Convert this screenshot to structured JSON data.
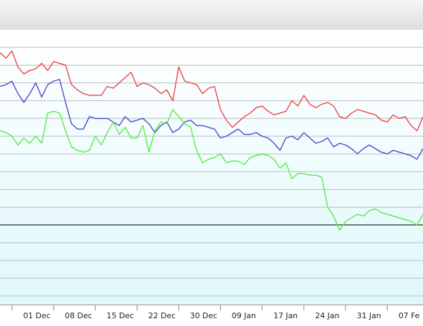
{
  "chart_data": {
    "type": "line",
    "title": "",
    "xlabel": "",
    "ylabel": "",
    "grid": true,
    "x_ticks": [
      "01 Dec",
      "08 Dec",
      "15 Dec",
      "22 Dec",
      "30 Dec",
      "09 Jan",
      "17 Jan",
      "24 Jan",
      "31 Jan",
      "07 Fe"
    ],
    "x_range": [
      -3,
      68
    ],
    "y_range": [
      -4.5,
      11
    ],
    "reference_line": 0,
    "colors": {
      "red": "#ee4444",
      "blue": "#5544cc",
      "green": "#55ee44",
      "grid": "#bbbbbb",
      "zero": "#333333"
    },
    "series": [
      {
        "color": "#ee4444",
        "x": [
          -3,
          -2,
          -1,
          0,
          1,
          2,
          3,
          4,
          5,
          6,
          7,
          8,
          9,
          10,
          11,
          12,
          13,
          14,
          15,
          16,
          17,
          18,
          19,
          20,
          21,
          22,
          23,
          24,
          25,
          26,
          27,
          28,
          29,
          30,
          31,
          32,
          33,
          34,
          35,
          36,
          37,
          38,
          39,
          40,
          41,
          42,
          43,
          44,
          45,
          46,
          47,
          48,
          49,
          50,
          51,
          52,
          53,
          54,
          55,
          56,
          57,
          58,
          59,
          60,
          61,
          62,
          63,
          64,
          65,
          66,
          67,
          68
        ],
        "values": [
          9.7,
          9.4,
          9.8,
          8.9,
          8.5,
          8.7,
          8.8,
          9.1,
          8.7,
          9.2,
          9.1,
          9.0,
          7.9,
          7.6,
          7.4,
          7.3,
          7.3,
          7.3,
          7.8,
          7.7,
          8.0,
          8.3,
          8.6,
          7.8,
          8.0,
          7.9,
          7.7,
          7.4,
          7.6,
          7.0,
          8.9,
          8.1,
          8.0,
          7.9,
          7.4,
          7.7,
          7.8,
          6.5,
          5.9,
          5.5,
          5.8,
          6.1,
          6.3,
          6.6,
          6.7,
          6.4,
          6.2,
          6.3,
          6.4,
          7.0,
          6.7,
          7.3,
          6.8,
          6.6,
          6.8,
          6.9,
          6.7,
          6.1,
          6.0,
          6.3,
          6.5,
          6.4,
          6.3,
          6.2,
          5.9,
          5.8,
          6.2,
          6.0,
          6.1,
          5.6,
          5.3,
          6.1
        ]
      },
      {
        "color": "#5544cc",
        "x": [
          -3,
          -2,
          -1,
          0,
          1,
          2,
          3,
          4,
          5,
          6,
          7,
          8,
          9,
          10,
          11,
          12,
          13,
          14,
          15,
          16,
          17,
          18,
          19,
          20,
          21,
          22,
          23,
          24,
          25,
          26,
          27,
          28,
          29,
          30,
          31,
          32,
          33,
          34,
          35,
          36,
          37,
          38,
          39,
          40,
          41,
          42,
          43,
          44,
          45,
          46,
          47,
          48,
          49,
          50,
          51,
          52,
          53,
          54,
          55,
          56,
          57,
          58,
          59,
          60,
          61,
          62,
          63,
          64,
          65,
          66,
          67,
          68
        ],
        "values": [
          7.8,
          7.9,
          8.1,
          7.4,
          6.9,
          7.4,
          8.0,
          7.2,
          7.9,
          8.1,
          8.2,
          6.9,
          5.7,
          5.4,
          5.4,
          6.1,
          6.0,
          6.0,
          6.0,
          5.8,
          5.6,
          6.1,
          5.8,
          5.9,
          6.0,
          5.7,
          5.2,
          5.6,
          5.8,
          5.2,
          5.4,
          5.8,
          5.9,
          5.6,
          5.6,
          5.5,
          5.4,
          4.9,
          5.0,
          5.2,
          5.4,
          5.1,
          5.1,
          5.2,
          5.0,
          4.9,
          4.6,
          4.2,
          4.9,
          5.0,
          4.8,
          5.2,
          4.9,
          4.6,
          4.7,
          4.9,
          4.4,
          4.6,
          4.5,
          4.3,
          4.0,
          4.3,
          4.5,
          4.3,
          4.1,
          4.0,
          4.2,
          4.1,
          4.0,
          3.9,
          3.7,
          4.3
        ]
      },
      {
        "color": "#55ee44",
        "x": [
          -3,
          -2,
          -1,
          0,
          1,
          2,
          3,
          4,
          5,
          6,
          7,
          8,
          9,
          10,
          11,
          12,
          13,
          14,
          15,
          16,
          17,
          18,
          19,
          20,
          21,
          22,
          23,
          24,
          25,
          26,
          27,
          28,
          29,
          30,
          31,
          32,
          33,
          34,
          35,
          36,
          37,
          38,
          39,
          40,
          41,
          42,
          43,
          44,
          45,
          46,
          47,
          48,
          49,
          50,
          51,
          52,
          53,
          54,
          55,
          56,
          57,
          58,
          59,
          60,
          61,
          62,
          63,
          64,
          65,
          66,
          67,
          68
        ],
        "values": [
          5.3,
          5.2,
          5.0,
          4.5,
          4.9,
          4.6,
          5.0,
          4.6,
          6.3,
          6.4,
          6.3,
          5.3,
          4.4,
          4.2,
          4.1,
          4.2,
          5.0,
          4.5,
          5.2,
          5.8,
          5.1,
          5.5,
          4.9,
          4.9,
          5.6,
          4.1,
          5.3,
          5.8,
          5.7,
          6.5,
          6.1,
          5.7,
          5.5,
          4.2,
          3.5,
          3.7,
          3.8,
          4.0,
          3.5,
          3.6,
          3.6,
          3.4,
          3.8,
          3.9,
          4.0,
          3.9,
          3.7,
          3.2,
          3.5,
          2.6,
          2.9,
          2.9,
          2.8,
          2.8,
          2.7,
          1.0,
          0.5,
          -0.3,
          0.2,
          0.4,
          0.6,
          0.5,
          0.8,
          0.9,
          0.7,
          0.6,
          0.5,
          0.4,
          0.3,
          0.2,
          0.0,
          0.6
        ]
      }
    ]
  }
}
